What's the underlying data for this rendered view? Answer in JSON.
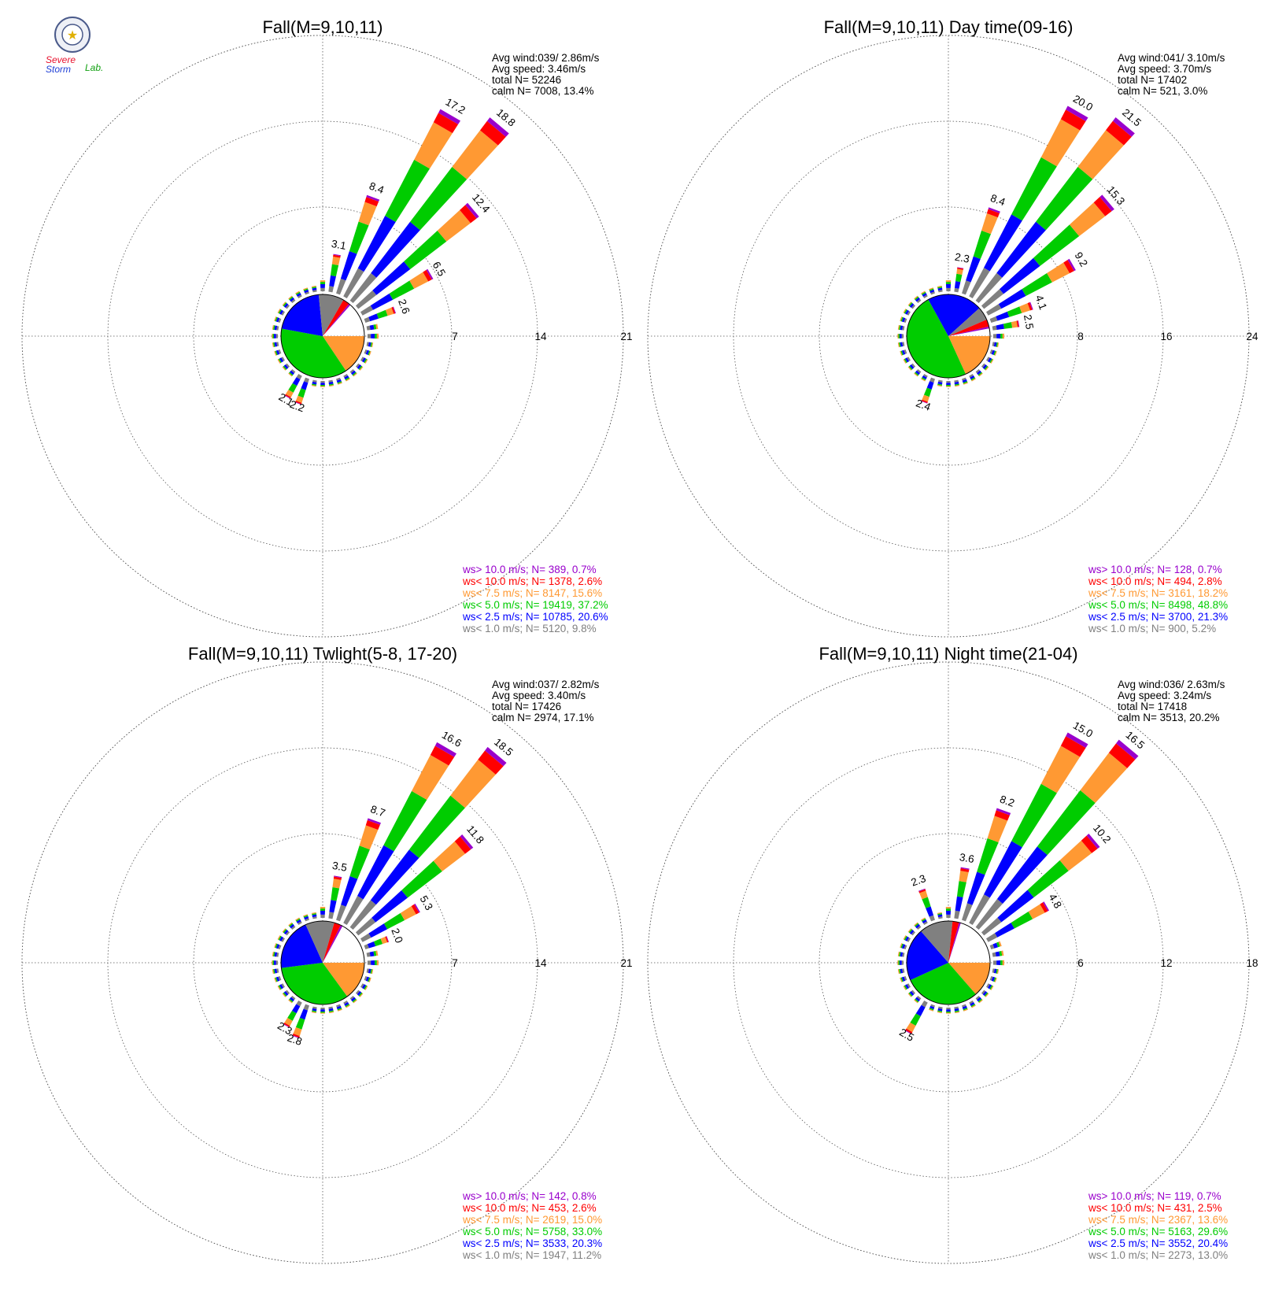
{
  "logo": {
    "word1": "Severe",
    "word2": "Storm",
    "word3": "Lab.",
    "colors": {
      "severe": "#e8112d",
      "storm": "#1f3fd6",
      "lab": "#12a012",
      "seal": "#4a5a8a"
    }
  },
  "colors": {
    "gt10": "#9900cc",
    "lt10": "#ff0000",
    "lt7_5": "#ff9933",
    "lt5": "#00cc00",
    "lt2_5": "#0000ff",
    "lt1": "#808080",
    "grid": "#555555"
  },
  "chart_data": [
    {
      "type": "wind-rose",
      "title": "Fall(M=9,10,11)",
      "stats": [
        "Avg wind:039/ 2.86m/s",
        "Avg speed: 3.46m/s",
        "total N=      52246",
        "calm N=   7008,  13.4%"
      ],
      "ring_values": [
        7,
        14,
        21
      ],
      "ring_labels": [
        "7",
        "14",
        "21"
      ],
      "rmax": 21,
      "calm_pct": 13.4,
      "pie": [
        15.6,
        37.2,
        20.6,
        9.8,
        2.6,
        0.7
      ],
      "bars": [
        {
          "dir": 10,
          "value": 3.1,
          "label": "3.1"
        },
        {
          "dir": 20,
          "value": 8.4,
          "label": "8.4"
        },
        {
          "dir": 30,
          "value": 17.2,
          "label": "17.2"
        },
        {
          "dir": 40,
          "value": 18.8,
          "label": "18.8"
        },
        {
          "dir": 50,
          "value": 12.4,
          "label": "12.4"
        },
        {
          "dir": 60,
          "value": 6.5,
          "label": "6.5"
        },
        {
          "dir": 70,
          "value": 2.6,
          "label": "2.6"
        },
        {
          "dir": 200,
          "value": 2.2,
          "label": "2.2"
        },
        {
          "dir": 210,
          "value": 2.1,
          "label": "2.1"
        }
      ],
      "legend": [
        "ws> 10.0 m/s; N=   389,  0.7%",
        "ws< 10.0 m/s; N=  1378,  2.6%",
        "ws<  7.5 m/s; N=  8147, 15.6%",
        "ws<  5.0 m/s; N= 19419, 37.2%",
        "ws<  2.5 m/s; N= 10785, 20.6%",
        "ws<  1.0 m/s; N=  5120,  9.8%"
      ]
    },
    {
      "type": "wind-rose",
      "title": "Fall(M=9,10,11) Day time(09-16)",
      "stats": [
        "Avg wind:041/ 3.10m/s",
        "Avg speed: 3.70m/s",
        "total N=      17402",
        "calm N=    521,   3.0%"
      ],
      "ring_values": [
        8,
        16,
        24
      ],
      "ring_labels": [
        "8",
        "16",
        "24"
      ],
      "rmax": 24,
      "calm_pct": 3.0,
      "pie": [
        18.2,
        48.8,
        21.3,
        5.2,
        2.8,
        0.7
      ],
      "bars": [
        {
          "dir": 10,
          "value": 2.3,
          "label": "2.3"
        },
        {
          "dir": 20,
          "value": 8.4,
          "label": "8.4"
        },
        {
          "dir": 30,
          "value": 20.0,
          "label": "20.0"
        },
        {
          "dir": 40,
          "value": 21.5,
          "label": "21.5"
        },
        {
          "dir": 50,
          "value": 15.3,
          "label": "15.3"
        },
        {
          "dir": 60,
          "value": 9.2,
          "label": "9.2"
        },
        {
          "dir": 70,
          "value": 4.1,
          "label": "4.1"
        },
        {
          "dir": 80,
          "value": 2.5,
          "label": "2.5"
        },
        {
          "dir": 200,
          "value": 2.4,
          "label": "2.4"
        }
      ],
      "legend": [
        "ws> 10.0 m/s; N=   128,  0.7%",
        "ws< 10.0 m/s; N=   494,  2.8%",
        "ws<  7.5 m/s; N=  3161, 18.2%",
        "ws<  5.0 m/s; N=  8498, 48.8%",
        "ws<  2.5 m/s; N=  3700, 21.3%",
        "ws<  1.0 m/s; N=   900,  5.2%"
      ]
    },
    {
      "type": "wind-rose",
      "title": "Fall(M=9,10,11) Twlight(5-8, 17-20)",
      "stats": [
        "Avg wind:037/ 2.82m/s",
        "Avg speed: 3.40m/s",
        "total N=      17426",
        "calm N=   2974,  17.1%"
      ],
      "ring_values": [
        7,
        14,
        21
      ],
      "ring_labels": [
        "7",
        "14",
        "21"
      ],
      "rmax": 21,
      "calm_pct": 17.1,
      "pie": [
        15.0,
        33.0,
        20.3,
        11.2,
        2.6,
        0.8
      ],
      "bars": [
        {
          "dir": 10,
          "value": 3.5,
          "label": "3.5"
        },
        {
          "dir": 20,
          "value": 8.7,
          "label": "8.7"
        },
        {
          "dir": 30,
          "value": 16.6,
          "label": "16.6"
        },
        {
          "dir": 40,
          "value": 18.5,
          "label": "18.5"
        },
        {
          "dir": 50,
          "value": 11.8,
          "label": "11.8"
        },
        {
          "dir": 60,
          "value": 5.3,
          "label": "5.3"
        },
        {
          "dir": 70,
          "value": 2.0,
          "label": "2.0"
        },
        {
          "dir": 200,
          "value": 2.8,
          "label": "2.8"
        },
        {
          "dir": 210,
          "value": 2.3,
          "label": "2.3"
        }
      ],
      "legend": [
        "ws> 10.0 m/s; N=   142,  0.8%",
        "ws< 10.0 m/s; N=   453,  2.6%",
        "ws<  7.5 m/s; N=  2619, 15.0%",
        "ws<  5.0 m/s; N=  5758, 33.0%",
        "ws<  2.5 m/s; N=  3533, 20.3%",
        "ws<  1.0 m/s; N=  1947, 11.2%"
      ]
    },
    {
      "type": "wind-rose",
      "title": "Fall(M=9,10,11) Night time(21-04)",
      "stats": [
        "Avg wind:036/ 2.63m/s",
        "Avg speed: 3.24m/s",
        "total N=      17418",
        "calm N=   3513,  20.2%"
      ],
      "ring_values": [
        6,
        12,
        18
      ],
      "ring_labels": [
        "6",
        "12",
        "18"
      ],
      "rmax": 18,
      "calm_pct": 20.2,
      "pie": [
        13.6,
        29.6,
        20.4,
        13.0,
        2.5,
        0.7
      ],
      "bars": [
        {
          "dir": 340,
          "value": 2.3,
          "label": "2.3"
        },
        {
          "dir": 10,
          "value": 3.6,
          "label": "3.6"
        },
        {
          "dir": 20,
          "value": 8.2,
          "label": "8.2"
        },
        {
          "dir": 30,
          "value": 15.0,
          "label": "15.0"
        },
        {
          "dir": 40,
          "value": 16.5,
          "label": "16.5"
        },
        {
          "dir": 50,
          "value": 10.2,
          "label": "10.2"
        },
        {
          "dir": 60,
          "value": 4.8,
          "label": "4.8"
        },
        {
          "dir": 210,
          "value": 2.5,
          "label": "2.5"
        }
      ],
      "legend": [
        "ws> 10.0 m/s; N=   119,  0.7%",
        "ws< 10.0 m/s; N=   431,  2.5%",
        "ws<  7.5 m/s; N=  2367, 13.6%",
        "ws<  5.0 m/s; N=  5163, 29.6%",
        "ws<  2.5 m/s; N=  3552, 20.4%",
        "ws<  1.0 m/s; N=  2273, 13.0%"
      ]
    }
  ]
}
